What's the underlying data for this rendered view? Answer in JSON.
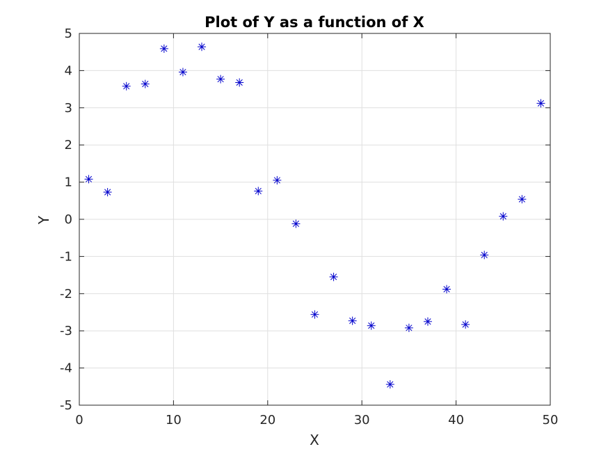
{
  "chart_data": {
    "type": "scatter",
    "title": "Plot of Y as a function of X",
    "xlabel": "X",
    "ylabel": "Y",
    "xlim": [
      0,
      50
    ],
    "ylim": [
      -5,
      5
    ],
    "x_ticks": [
      0,
      10,
      20,
      30,
      40,
      50
    ],
    "y_ticks": [
      -5,
      -4,
      -3,
      -2,
      -1,
      0,
      1,
      2,
      3,
      4,
      5
    ],
    "grid": true,
    "marker": "asterisk",
    "marker_color": "#0000cc",
    "series": [
      {
        "x": [
          1,
          3,
          5,
          7,
          9,
          11,
          13,
          15,
          17,
          19,
          21,
          23,
          25,
          27,
          29,
          31,
          33,
          35,
          37,
          39,
          41,
          43,
          45,
          47,
          49
        ],
        "y": [
          1.08,
          0.73,
          3.58,
          3.64,
          4.59,
          3.96,
          4.64,
          3.77,
          3.68,
          0.76,
          1.05,
          -0.12,
          -2.56,
          -1.55,
          -2.73,
          -2.86,
          -4.44,
          -2.92,
          -2.75,
          -1.88,
          -2.83,
          -0.96,
          0.08,
          0.54,
          3.12
        ]
      }
    ]
  }
}
